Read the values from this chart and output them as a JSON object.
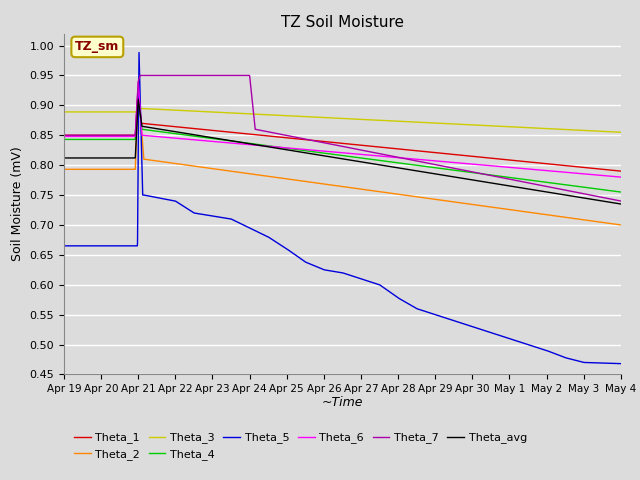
{
  "title": "TZ Soil Moisture",
  "xlabel": "~Time",
  "ylabel": "Soil Moisture (mV)",
  "ylim": [
    0.45,
    1.02
  ],
  "yticks": [
    0.45,
    0.5,
    0.55,
    0.6,
    0.65,
    0.7,
    0.75,
    0.8,
    0.85,
    0.9,
    0.95,
    1.0
  ],
  "xtick_labels": [
    "Apr 19",
    "Apr 20",
    "Apr 21",
    "Apr 22",
    "Apr 23",
    "Apr 24",
    "Apr 25",
    "Apr 26",
    "Apr 27",
    "Apr 28",
    "Apr 29",
    "Apr 30",
    "May 1",
    "May 2",
    "May 3",
    "May 4"
  ],
  "background_color": "#dcdcdc",
  "plot_bg_color": "#dcdcdc",
  "legend_box_color": "#ffffcc",
  "legend_box_text": "TZ_sm",
  "legend_box_text_color": "#880000",
  "colors": {
    "Theta_1": "#dd0000",
    "Theta_2": "#ff8800",
    "Theta_3": "#cccc00",
    "Theta_4": "#00cc00",
    "Theta_5": "#0000dd",
    "Theta_6": "#ff00ff",
    "Theta_7": "#aa00aa",
    "Theta_avg": "#000000"
  },
  "linewidth": 1.0,
  "spike_day": 2.0,
  "n_days": 15
}
